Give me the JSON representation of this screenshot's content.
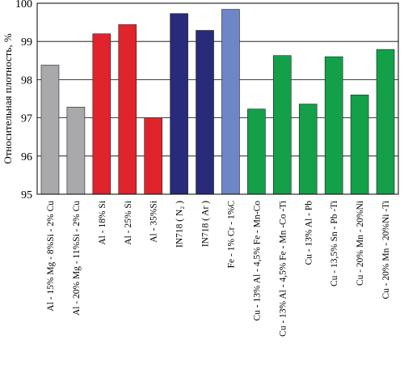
{
  "chart_data": {
    "type": "bar",
    "ylabel": "Относительная плотность, %",
    "ylim": [
      95,
      100
    ],
    "yticks": [
      "95",
      "96",
      "97",
      "98",
      "99",
      "100"
    ],
    "grid": "horizontal",
    "categories": [
      "Al - 15% Mg - 8%Si - 2% Cu",
      "Al - 20% Mg - 11%Si - 2% Cu",
      "Al - 18% Si",
      "Al - 25% Si",
      "Al - 35%Si",
      "IN718 ( N₂ )",
      "IN718 ( Ar )",
      "Fe - 1% Cr - 1%C",
      "Cu - 13% Al - 4,5% Fe - Mn-Co",
      "Cu - 13% Al - 4,5% Fe - Mn -Co -Ti",
      "Cu - 13% Al - Pb",
      "Cu - 13,5% Sn - Pb -Ti",
      "Cu - 20% Mn - 20%Ni",
      "Cu - 20% Mn - 20%Ni -Ti"
    ],
    "values": [
      98.38,
      97.28,
      99.2,
      99.44,
      97.0,
      99.73,
      99.29,
      99.84,
      97.23,
      98.63,
      97.36,
      98.6,
      97.6,
      98.79
    ],
    "colors": [
      "#a9a9ab",
      "#a9a9ab",
      "#e0242b",
      "#e0242b",
      "#e0242b",
      "#272b7a",
      "#272b7a",
      "#6d86c6",
      "#13a049",
      "#13a049",
      "#13a049",
      "#13a049",
      "#13a049",
      "#13a049"
    ]
  }
}
